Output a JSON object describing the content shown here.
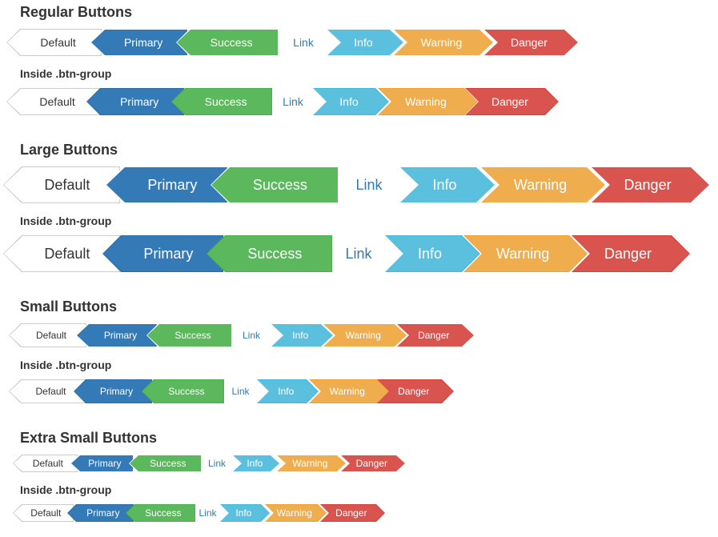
{
  "sections": [
    {
      "heading": "Regular Buttons",
      "group_heading": "Inside .btn-group"
    },
    {
      "heading": "Large Buttons",
      "group_heading": "Inside .btn-group"
    },
    {
      "heading": "Small Buttons",
      "group_heading": "Inside .btn-group"
    },
    {
      "heading": "Extra Small Buttons",
      "group_heading": "Inside .btn-group"
    }
  ],
  "buttons": [
    {
      "key": "default",
      "label": "Default",
      "bg": "#ffffff",
      "border": "#cccccc",
      "text": "#333333",
      "direction": "left"
    },
    {
      "key": "primary",
      "label": "Primary",
      "bg": "#337ab7",
      "border": "#2e6da4",
      "text": "#ffffff",
      "direction": "left"
    },
    {
      "key": "success",
      "label": "Success",
      "bg": "#5cb85c",
      "border": "#4cae4c",
      "text": "#ffffff",
      "direction": "left"
    },
    {
      "key": "link",
      "label": "Link",
      "bg": "transparent",
      "border": "transparent",
      "text": "#337ab7",
      "direction": "none"
    },
    {
      "key": "info",
      "label": "Info",
      "bg": "#5bc0de",
      "border": "#46b8da",
      "text": "#ffffff",
      "direction": "right"
    },
    {
      "key": "warning",
      "label": "Warning",
      "bg": "#f0ad4e",
      "border": "#eea236",
      "text": "#ffffff",
      "direction": "right"
    },
    {
      "key": "danger",
      "label": "Danger",
      "bg": "#d9534f",
      "border": "#d43f3a",
      "text": "#ffffff",
      "direction": "right"
    }
  ]
}
